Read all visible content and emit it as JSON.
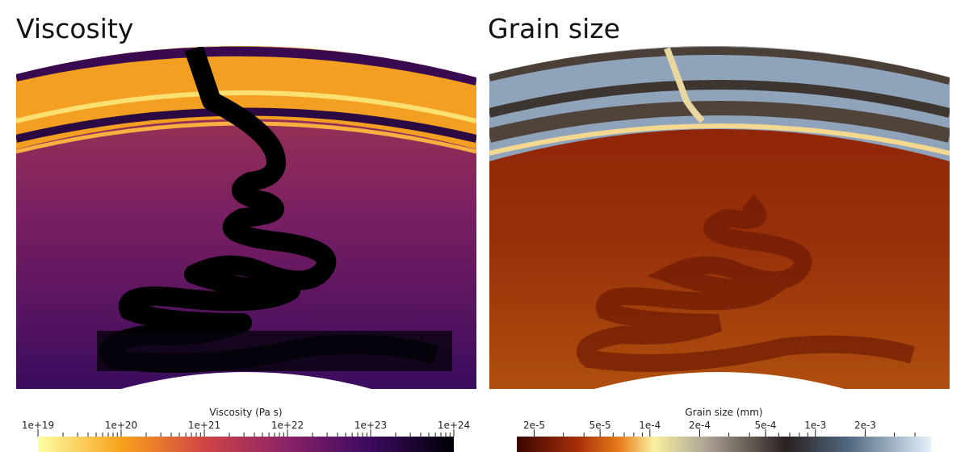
{
  "panels": [
    {
      "title": "Viscosity",
      "colorbar": {
        "label": "Viscosity (Pa s)",
        "log": true,
        "lim": [
          1e+19,
          1e+24
        ],
        "ticks": [
          {
            "value": 1e+19,
            "label": "1e+19"
          },
          {
            "value": 1e+20,
            "label": "1e+20"
          },
          {
            "value": 1e+21,
            "label": "1e+21"
          },
          {
            "value": 1e+22,
            "label": "1e+22"
          },
          {
            "value": 1e+23,
            "label": "1e+23"
          },
          {
            "value": 1e+24,
            "label": "1e+24"
          }
        ]
      }
    },
    {
      "title": "Grain size",
      "colorbar": {
        "label": "Grain size (mm)",
        "log": true,
        "lim": [
          1.57e-05,
          0.005
        ],
        "ticks": [
          {
            "value": 2e-05,
            "label": "2e-5"
          },
          {
            "value": 5e-05,
            "label": "5e-5"
          },
          {
            "value": 0.0001,
            "label": "1e-4"
          },
          {
            "value": 0.0002,
            "label": "2e-4"
          },
          {
            "value": 0.0005,
            "label": "5e-4"
          },
          {
            "value": 0.001,
            "label": "1e-3"
          },
          {
            "value": 0.002,
            "label": "2e-3"
          }
        ]
      }
    }
  ]
}
